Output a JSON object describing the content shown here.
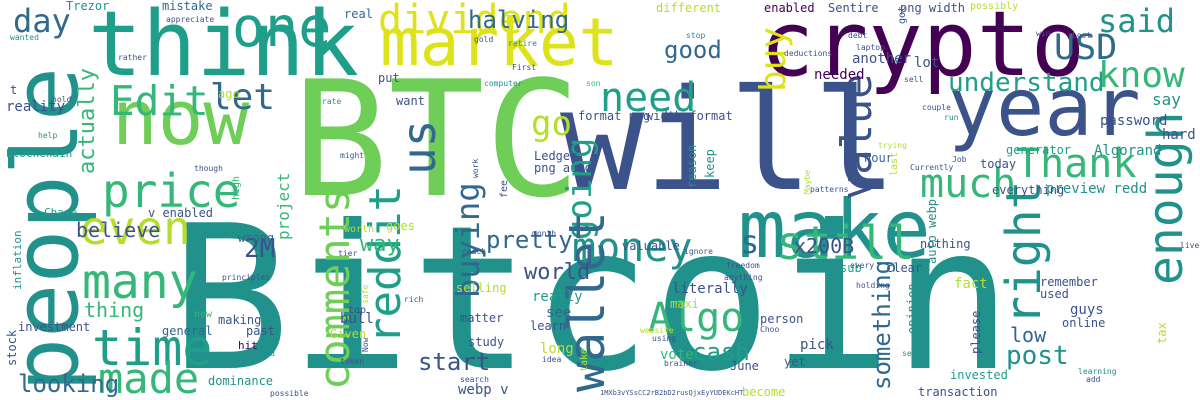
{
  "palette": {
    "dark_purple": "#440154",
    "indigo": "#3b528b",
    "blue": "#31688e",
    "teal": "#21918c",
    "sea_green": "#1f9e89",
    "green": "#35b779",
    "light_green": "#6ece58",
    "lime": "#b5de2b",
    "yellow": "#dde318"
  },
  "words": [
    {
      "text": "Bitcoin"
    },
    {
      "text": "BTC"
    },
    {
      "text": "will"
    },
    {
      "text": "crypto"
    },
    {
      "text": "think"
    },
    {
      "text": "people"
    },
    {
      "text": "make"
    },
    {
      "text": "year"
    },
    {
      "text": "market"
    },
    {
      "text": "now"
    },
    {
      "text": "one"
    },
    {
      "text": "dividend"
    },
    {
      "text": "price"
    },
    {
      "text": "time"
    },
    {
      "text": "Edit"
    },
    {
      "text": "many"
    },
    {
      "text": "made"
    },
    {
      "text": "even"
    },
    {
      "text": "let"
    },
    {
      "text": "day"
    },
    {
      "text": "us"
    },
    {
      "text": "reddit"
    },
    {
      "text": "comments"
    },
    {
      "text": "money"
    },
    {
      "text": "buying"
    },
    {
      "text": "go"
    },
    {
      "text": "need"
    },
    {
      "text": "buy"
    },
    {
      "text": "going"
    },
    {
      "text": "value"
    },
    {
      "text": "still"
    },
    {
      "text": "much"
    },
    {
      "text": "Thank"
    },
    {
      "text": "know"
    },
    {
      "text": "USD"
    },
    {
      "text": "said"
    },
    {
      "text": "understand"
    },
    {
      "text": "right"
    },
    {
      "text": "enough"
    },
    {
      "text": "wallet"
    },
    {
      "text": "Algo"
    },
    {
      "text": "halving"
    },
    {
      "text": "good"
    },
    {
      "text": "pretty"
    },
    {
      "text": "way"
    },
    {
      "text": "world"
    },
    {
      "text": "2M"
    },
    {
      "text": "s"
    },
    {
      "text": "cash"
    },
    {
      "text": "post"
    },
    {
      "text": "low"
    },
    {
      "text": "something"
    },
    {
      "text": "start"
    },
    {
      "text": "looking"
    },
    {
      "text": "believe"
    },
    {
      "text": "thing"
    },
    {
      "text": "actually"
    },
    {
      "text": "project"
    },
    {
      "text": "x200B"
    },
    {
      "text": "say"
    },
    {
      "text": "password"
    },
    {
      "text": "hard"
    },
    {
      "text": "Algorand"
    },
    {
      "text": "generator"
    },
    {
      "text": "preview redd"
    },
    {
      "text": "everything"
    },
    {
      "text": "today"
    },
    {
      "text": "hour"
    },
    {
      "text": "lot"
    },
    {
      "text": "another"
    },
    {
      "text": "needed"
    },
    {
      "text": "enabled"
    },
    {
      "text": "Sentire"
    },
    {
      "text": "png width"
    },
    {
      "text": "possibly"
    },
    {
      "text": "different"
    },
    {
      "text": "mistake"
    },
    {
      "text": "Trezor"
    },
    {
      "text": "real"
    },
    {
      "text": "reality"
    },
    {
      "text": "blockchain"
    },
    {
      "text": "Chase"
    },
    {
      "text": "v enabled"
    },
    {
      "text": "wrong"
    },
    {
      "text": "investment"
    },
    {
      "text": "general"
    },
    {
      "text": "making"
    },
    {
      "text": "past"
    },
    {
      "text": "hit"
    },
    {
      "text": "dominance"
    },
    {
      "text": "bull"
    },
    {
      "text": "Given"
    },
    {
      "text": "top"
    },
    {
      "text": "worth"
    },
    {
      "text": "matter"
    },
    {
      "text": "study"
    },
    {
      "text": "webp v"
    },
    {
      "text": "really"
    },
    {
      "text": "see"
    },
    {
      "text": "learn"
    },
    {
      "text": "long"
    },
    {
      "text": "selling"
    },
    {
      "text": "literally"
    },
    {
      "text": "maxi"
    },
    {
      "text": "person"
    },
    {
      "text": "pick"
    },
    {
      "text": "yet"
    },
    {
      "text": "June"
    },
    {
      "text": "vote"
    },
    {
      "text": "become"
    },
    {
      "text": "transaction"
    },
    {
      "text": "invested"
    },
    {
      "text": "used"
    },
    {
      "text": "guys"
    },
    {
      "text": "online"
    },
    {
      "text": "please"
    },
    {
      "text": "remember"
    },
    {
      "text": "fact"
    },
    {
      "text": "nothing"
    },
    {
      "text": "clear"
    },
    {
      "text": "sub"
    },
    {
      "text": "auto webp"
    },
    {
      "text": "opinion"
    },
    {
      "text": "valuable"
    },
    {
      "text": "Ledger"
    },
    {
      "text": "png auto"
    },
    {
      "text": "format png"
    },
    {
      "text": "width format"
    },
    {
      "text": "reason"
    },
    {
      "text": "keep"
    },
    {
      "text": "want"
    },
    {
      "text": "put"
    },
    {
      "text": "ago"
    },
    {
      "text": "goes"
    },
    {
      "text": "fee"
    },
    {
      "text": "stock"
    },
    {
      "text": "inflation"
    },
    {
      "text": "tax"
    },
    {
      "text": "last"
    },
    {
      "text": "got"
    },
    {
      "text": "t"
    },
    {
      "text": "new"
    },
    {
      "text": "high"
    },
    {
      "text": "hold"
    },
    {
      "text": "help"
    },
    {
      "text": "wanted"
    },
    {
      "text": "rather"
    },
    {
      "text": "appreciate"
    },
    {
      "text": "gold"
    },
    {
      "text": "retire"
    },
    {
      "text": "First"
    },
    {
      "text": "computer"
    },
    {
      "text": "son"
    },
    {
      "text": "stop"
    },
    {
      "text": "deductions"
    },
    {
      "text": "laptop"
    },
    {
      "text": "sell"
    },
    {
      "text": "couple"
    },
    {
      "text": "run"
    },
    {
      "text": "win"
    },
    {
      "text": "Lost"
    },
    {
      "text": "trying"
    },
    {
      "text": "Job"
    },
    {
      "text": "Maybe"
    },
    {
      "text": "Currently"
    },
    {
      "text": "patterns"
    },
    {
      "text": "every"
    },
    {
      "text": "holding"
    },
    {
      "text": "card"
    },
    {
      "text": "seem"
    },
    {
      "text": "hope"
    },
    {
      "text": "Choo"
    },
    {
      "text": "anything"
    },
    {
      "text": "freedom"
    },
    {
      "text": "ignore"
    },
    {
      "text": "website"
    },
    {
      "text": "brainer"
    },
    {
      "text": "1MXb3vYSsCC2rB2bD2rusQjxEyYUDEKcHT"
    },
    {
      "text": "idea"
    },
    {
      "text": "search"
    },
    {
      "text": "reach"
    },
    {
      "text": "month"
    },
    {
      "text": "work"
    },
    {
      "text": "token"
    },
    {
      "text": "rich"
    },
    {
      "text": "safe"
    },
    {
      "text": "Now"
    },
    {
      "text": "tier"
    },
    {
      "text": "principles"
    },
    {
      "text": "around"
    },
    {
      "text": "possible"
    },
    {
      "text": "might"
    },
    {
      "text": "though"
    },
    {
      "text": "rate"
    },
    {
      "text": "live"
    },
    {
      "text": "learning"
    },
    {
      "text": "add"
    },
    {
      "text": "using"
    },
    {
      "text": "take"
    },
    {
      "text": "debt"
    }
  ]
}
